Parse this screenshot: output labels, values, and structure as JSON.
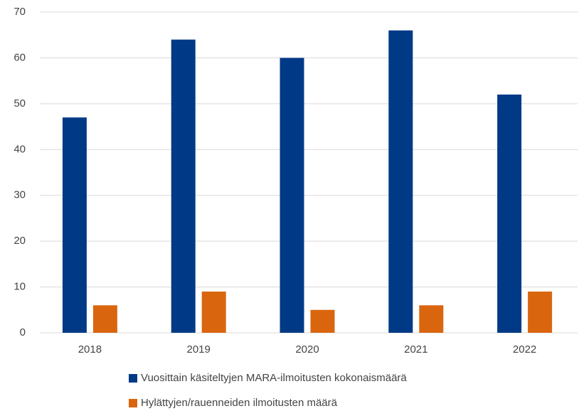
{
  "chart_data": {
    "type": "bar",
    "categories": [
      "2018",
      "2019",
      "2020",
      "2021",
      "2022"
    ],
    "series": [
      {
        "name": "Vuosittain käsiteltyjen MARA-ilmoitusten kokonaismäärä",
        "color": "#003a87",
        "values": [
          47,
          64,
          60,
          66,
          52
        ]
      },
      {
        "name": "Hylättyjen/rauenneiden ilmoitusten määrä",
        "color": "#d9660f",
        "values": [
          6,
          9,
          5,
          6,
          9
        ]
      }
    ],
    "ylim": [
      0,
      70
    ],
    "yticks": [
      0,
      10,
      20,
      30,
      40,
      50,
      60,
      70
    ],
    "grid": true,
    "legend": "bottom"
  }
}
